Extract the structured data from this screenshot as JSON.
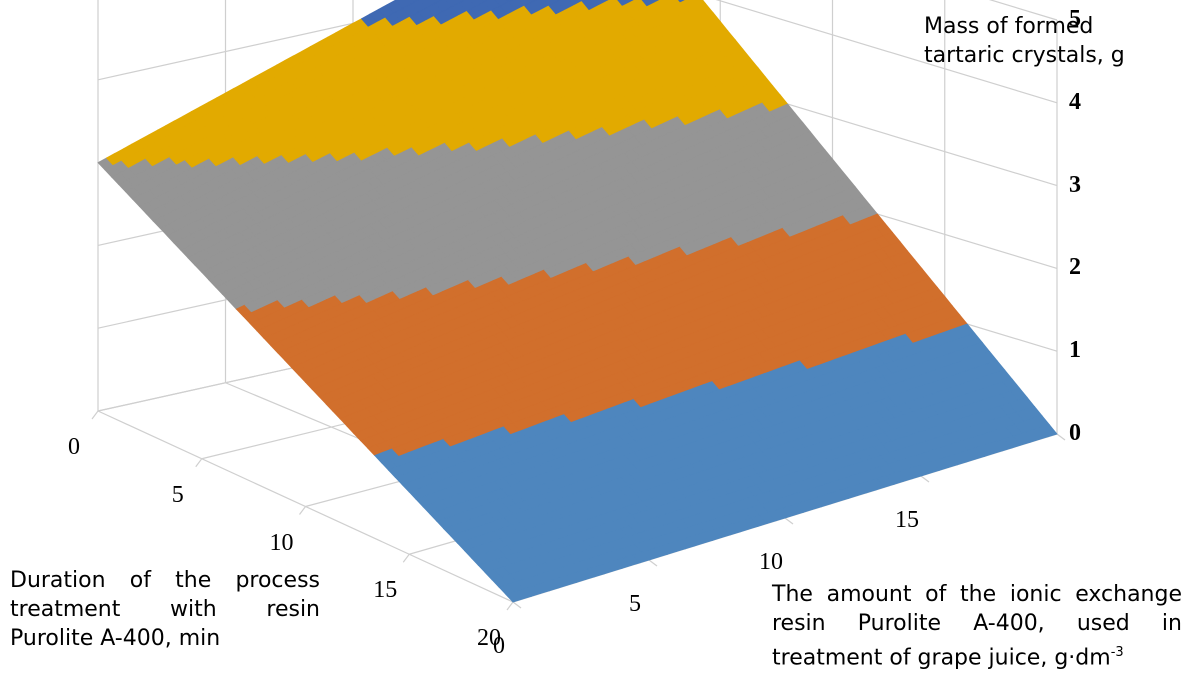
{
  "chart_data": {
    "type": "surface",
    "z_title": [
      "Mass of formed",
      "tartaric crystals, g"
    ],
    "x_title": [
      "Duration of the process",
      "treatment with resin",
      "Purolite A-400, min"
    ],
    "y_title_lines": [
      "The amount of the ionic exchange",
      "resin Purolite A-400, used in"
    ],
    "y_title_last": "treatment of grape juice, g·dm",
    "y_title_sup": "-3",
    "x_ticks": [
      "0",
      "5",
      "10",
      "15",
      "20"
    ],
    "y_ticks": [
      "0",
      "5",
      "10",
      "15"
    ],
    "z_ticks": [
      "0",
      "1",
      "2",
      "3",
      "4",
      "5"
    ],
    "x_range": [
      0,
      20
    ],
    "y_range": [
      0,
      20
    ],
    "z_range": [
      0,
      5
    ],
    "corner_values": {
      "duration_0_amount_0": 3.0,
      "duration_0_amount_20": 5.0,
      "duration_20_amount_0": 0.0,
      "duration_20_amount_20": 0.0
    },
    "bands": [
      {
        "range": "0-1",
        "color": "#4e86be"
      },
      {
        "range": "1-2",
        "color": "#d16f2c"
      },
      {
        "range": "2-3",
        "color": "#959595"
      },
      {
        "range": "3-4",
        "color": "#e2aa00"
      },
      {
        "range": "4-5",
        "color": "#3f69b3"
      }
    ],
    "grid": true,
    "legend": "none"
  }
}
